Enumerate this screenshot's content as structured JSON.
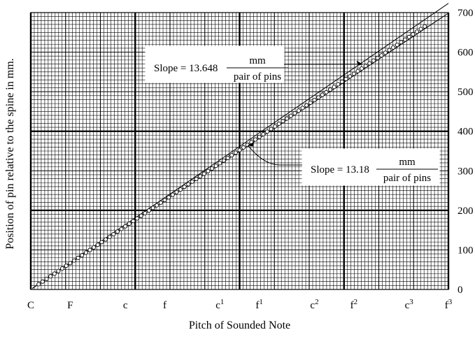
{
  "chart_data": {
    "type": "scatter",
    "xlabel": "Pitch of Sounded Note",
    "ylabel": "Position of pin relative to the spine in mm.",
    "ylim": [
      0,
      700
    ],
    "y_ticks": [
      0,
      100,
      200,
      300,
      400,
      500,
      600,
      700
    ],
    "grid": true,
    "x_ticks": [
      {
        "base": "C",
        "sup": ""
      },
      {
        "base": "F",
        "sup": ""
      },
      {
        "base": "c",
        "sup": ""
      },
      {
        "base": "f",
        "sup": ""
      },
      {
        "base": "c",
        "sup": "1"
      },
      {
        "base": "f",
        "sup": "1"
      },
      {
        "base": "c",
        "sup": "2"
      },
      {
        "base": "f",
        "sup": "2"
      },
      {
        "base": "c",
        "sup": "3"
      },
      {
        "base": "f",
        "sup": "3"
      }
    ],
    "x_range_semitones": [
      0,
      53
    ],
    "x_tick_semitones": [
      0,
      5,
      12,
      17,
      24,
      29,
      36,
      41,
      48,
      53
    ],
    "fit_lines": [
      {
        "slope": 13.648,
        "intercept": 0
      },
      {
        "slope": 13.18,
        "intercept": 0
      }
    ],
    "annotations": [
      {
        "prefix": "Slope = ",
        "value": "13.648",
        "numerator": "mm",
        "denominator": "pair of pins",
        "target_semitone": 42.5
      },
      {
        "prefix": "Slope = ",
        "value": "13.18",
        "numerator": "mm",
        "denominator": "pair of pins",
        "target_semitone": 27.2
      }
    ],
    "points_start_semitone": 1,
    "points_end_semitone": 50,
    "points_per_semitone": 2,
    "points_slope": 13.3
  }
}
